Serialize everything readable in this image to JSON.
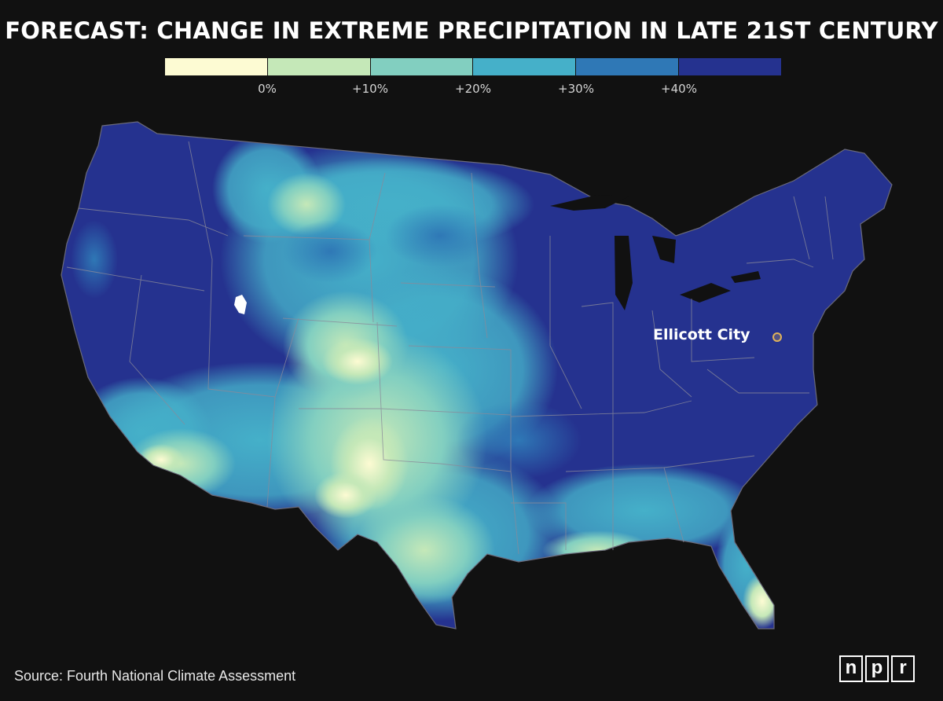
{
  "title": "FORECAST: CHANGE IN EXTREME PRECIPITATION IN LATE 21ST CENTURY",
  "legend": {
    "colors": [
      "#fdfbd3",
      "#c5e8b8",
      "#82cfc0",
      "#45b0c9",
      "#2f78b6",
      "#25328f"
    ],
    "labels": [
      "0%",
      "+10%",
      "+20%",
      "+30%",
      "+40%"
    ]
  },
  "map": {
    "marker_label": "Ellicott City",
    "marker_color": "#e0b25a",
    "boundary_color": "#8a8a9a"
  },
  "source": "Source: Fourth National Climate Assessment",
  "logo": {
    "letters": [
      "n",
      "p",
      "r"
    ]
  }
}
